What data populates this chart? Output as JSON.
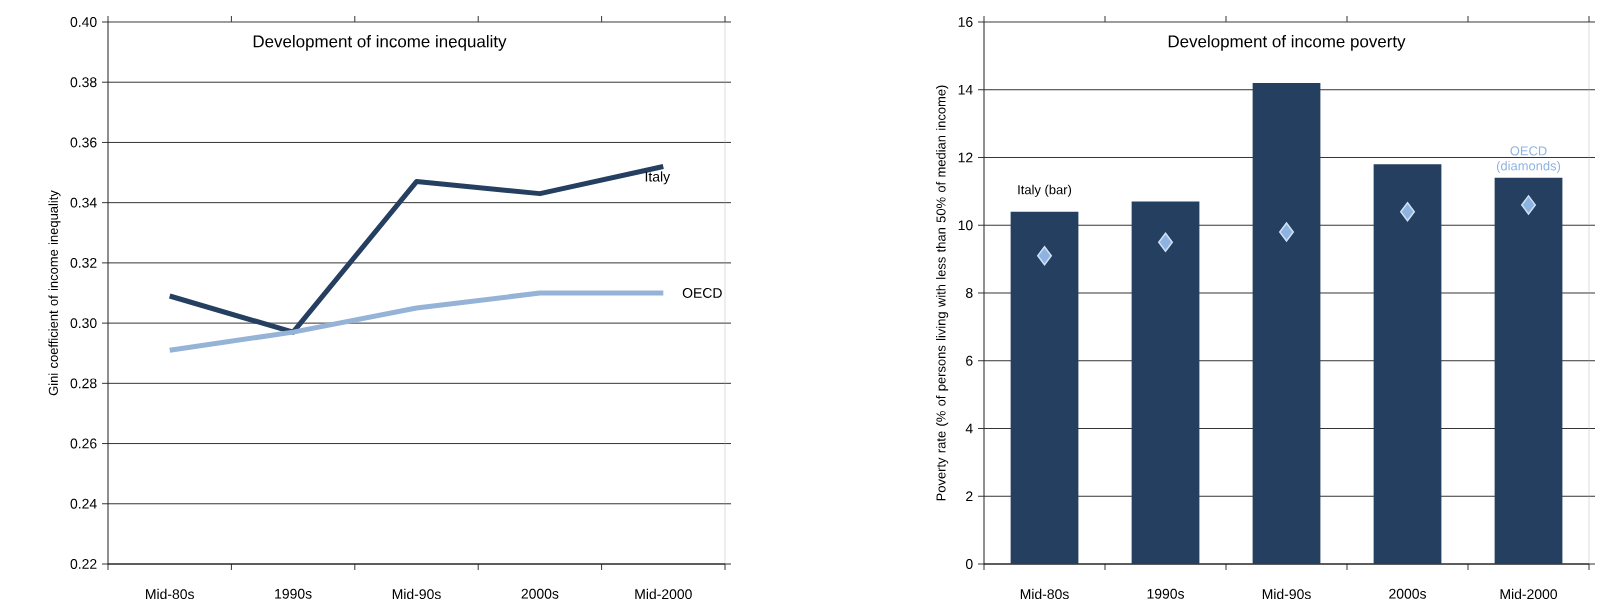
{
  "chart_data": [
    {
      "type": "line",
      "title": "Development of income inequality",
      "ylabel": "Gini coefficient of income inequality",
      "categories": [
        "Mid-80s",
        "1990s",
        "Mid-90s",
        "2000s",
        "Mid-2000"
      ],
      "series": [
        {
          "name": "Italy",
          "color": "#243f60",
          "values": [
            0.309,
            0.297,
            0.347,
            0.343,
            0.352
          ]
        },
        {
          "name": "OECD",
          "color": "#95b3d7",
          "values": [
            0.291,
            0.297,
            0.305,
            0.31,
            0.31
          ]
        }
      ],
      "ylim": [
        0.22,
        0.4
      ],
      "yticks": [
        {
          "value": 0.22,
          "label": "0.22"
        },
        {
          "value": 0.24,
          "label": "0.24"
        },
        {
          "value": 0.26,
          "label": "0.26"
        },
        {
          "value": 0.28,
          "label": "0.28"
        },
        {
          "value": 0.3,
          "label": "0.30"
        },
        {
          "value": 0.32,
          "label": "0.32"
        },
        {
          "value": 0.34,
          "label": "0.34"
        },
        {
          "value": 0.36,
          "label": "0.36"
        },
        {
          "value": 0.38,
          "label": "0.38"
        },
        {
          "value": 0.4,
          "label": "0.40"
        }
      ],
      "grid": "y"
    },
    {
      "type": "bar",
      "title": "Development of income poverty",
      "ylabel": "Poverty rate  (% of persons living with less than 50% of median income)",
      "categories": [
        "Mid-80s",
        "1990s",
        "Mid-90s",
        "2000s",
        "Mid-2000"
      ],
      "series": [
        {
          "name": "Italy (bar)",
          "color": "#243f60",
          "values": [
            10.4,
            10.7,
            14.2,
            11.8,
            11.4
          ]
        },
        {
          "name": "OECD (diamonds)",
          "type": "scatter",
          "marker": "diamond",
          "color": "#8db3e2",
          "values": [
            9.1,
            9.5,
            9.8,
            10.4,
            10.6
          ]
        }
      ],
      "ylim": [
        0,
        16
      ],
      "yticks": [
        0,
        2,
        4,
        6,
        8,
        10,
        12,
        14,
        16
      ],
      "grid": "y"
    }
  ]
}
